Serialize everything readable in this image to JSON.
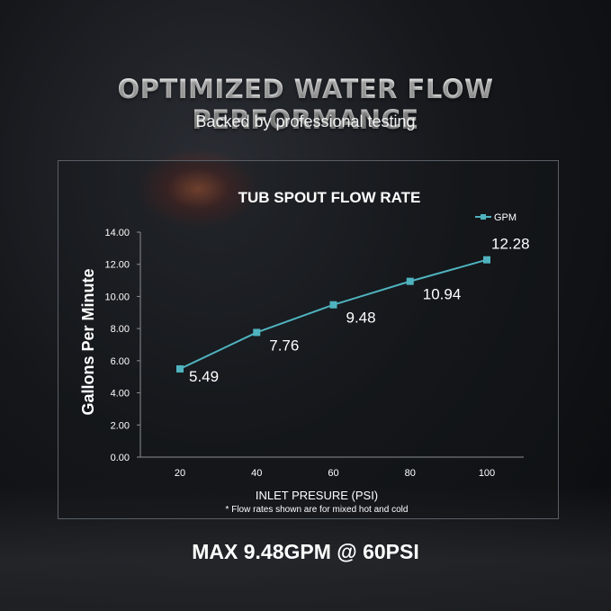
{
  "header": {
    "title": "OPTIMIZED WATER FLOW PERFORMANCE",
    "subtitle": "Backed by professional testing"
  },
  "footer": {
    "text": "MAX 9.48GPM @ 60PSI"
  },
  "colors": {
    "series": "#4fb3bf",
    "text": "#ffffff",
    "grid": "#8a8d93"
  },
  "chart_data": {
    "type": "line",
    "title": "TUB SPOUT FLOW RATE",
    "xlabel": "INLET PRESURE (PSI)",
    "ylabel": "Gallons Per Minute",
    "note": "* Flow rates shown are for mixed hot and cold",
    "x": [
      20,
      40,
      60,
      80,
      100
    ],
    "x_tick_labels": [
      "20",
      "40",
      "60",
      "80",
      "100"
    ],
    "y_tick_labels": [
      "0.00",
      "2.00",
      "4.00",
      "6.00",
      "8.00",
      "10.00",
      "12.00",
      "14.00"
    ],
    "ylim": [
      0,
      14
    ],
    "grid": false,
    "legend_position": "top-right",
    "series": [
      {
        "name": "GPM",
        "values": [
          5.49,
          7.76,
          9.48,
          10.94,
          12.28
        ],
        "data_labels": [
          "5.49",
          "7.76",
          "9.48",
          "10.94",
          "12.28"
        ]
      }
    ]
  }
}
